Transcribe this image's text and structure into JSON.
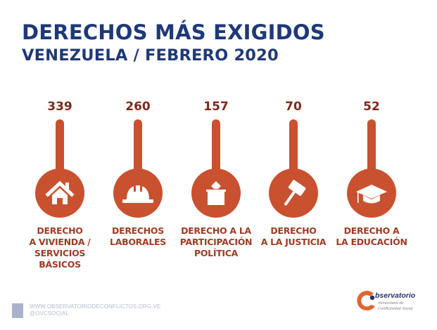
{
  "title": {
    "line1": "DERECHOS MÁS EXIGIDOS",
    "line2": "VENEZUELA / FEBRERO 2020"
  },
  "colors": {
    "title": "#1f3978",
    "accent": "#c9512f",
    "value_text": "#7a2b1c",
    "label_text": "#9e3b23",
    "icon": "#ffffff"
  },
  "chart_data": {
    "type": "bar",
    "title": "DERECHOS MÁS EXIGIDOS — VENEZUELA / FEBRERO 2020",
    "xlabel": "",
    "ylabel": "",
    "categories": [
      "Derecho a vivienda / servicios básicos",
      "Derechos laborales",
      "Derecho a la participación política",
      "Derecho a la justicia",
      "Derecho a la educación"
    ],
    "values": [
      339,
      260,
      157,
      70,
      52
    ],
    "items": [
      {
        "value": "339",
        "icon": "house-icon",
        "label_lines": [
          "DERECHO",
          "A VIVIENDA /",
          "SERVICIOS",
          "BÁSICOS"
        ]
      },
      {
        "value": "260",
        "icon": "hard-hat-icon",
        "label_lines": [
          "DERECHOS",
          "LABORALES"
        ]
      },
      {
        "value": "157",
        "icon": "ballot-box-icon",
        "label_lines": [
          "DERECHO A LA",
          "PARTICIPACIÓN",
          "POLÍTICA"
        ]
      },
      {
        "value": "70",
        "icon": "gavel-icon",
        "label_lines": [
          "DERECHO",
          "A LA JUSTICIA"
        ]
      },
      {
        "value": "52",
        "icon": "graduation-cap-icon",
        "label_lines": [
          "DERECHO A",
          "LA EDUCACIÓN"
        ]
      }
    ],
    "grid": false,
    "legend": "none"
  },
  "footer": {
    "website": "WWW.OBSERVATORIODECONFLICTOS.ORG.VE",
    "handle": "@OVCSOCIAL"
  },
  "logo": {
    "title": "bservatorio",
    "subtitle_line1": "Venezolano de",
    "subtitle_line2": "Conflictividad Social"
  }
}
